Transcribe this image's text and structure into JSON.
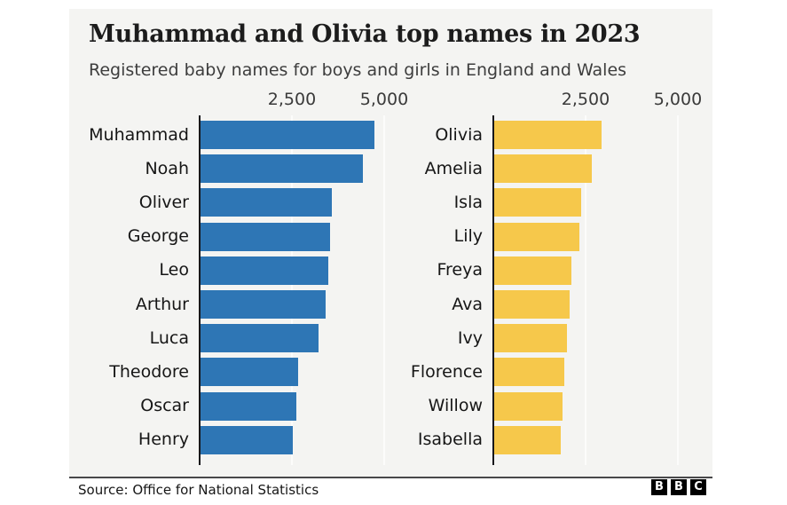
{
  "header": {
    "title": "Muhammad and Olivia top names in 2023",
    "subtitle": "Registered baby names for boys and girls in England and Wales"
  },
  "chart_data": {
    "type": "bar",
    "orientation": "horizontal",
    "title": "Muhammad and Olivia top names in 2023",
    "subtitle": "Registered baby names for boys and girls in England and Wales",
    "x_axis": {
      "tick_values": [
        2500,
        5000
      ],
      "tick_labels": [
        "2,500",
        "5,000"
      ],
      "range": [
        0,
        5650
      ],
      "grid": true
    },
    "panels": [
      {
        "name": "boys",
        "bar_color": "#2e76b5",
        "categories": [
          "Muhammad",
          "Noah",
          "Oliver",
          "George",
          "Leo",
          "Arthur",
          "Luca",
          "Theodore",
          "Oscar",
          "Henry"
        ],
        "values": [
          4700,
          4400,
          3550,
          3500,
          3450,
          3400,
          3200,
          2650,
          2600,
          2500
        ]
      },
      {
        "name": "girls",
        "bar_color": "#f6c84b",
        "categories": [
          "Olivia",
          "Amelia",
          "Isla",
          "Lily",
          "Freya",
          "Ava",
          "Ivy",
          "Florence",
          "Willow",
          "Isabella"
        ],
        "values": [
          2900,
          2650,
          2350,
          2300,
          2100,
          2050,
          1970,
          1900,
          1850,
          1800
        ]
      }
    ]
  },
  "footer": {
    "source": "Source: Office for National Statistics",
    "logo": [
      "B",
      "B",
      "C"
    ]
  },
  "colors": {
    "boys_bar": "#2e76b5",
    "girls_bar": "#f6c84b",
    "card_background": "#f4f4f2",
    "axis_line": "#17171b",
    "gridline": "#fcfcfb",
    "title_text": "#1c1c1c",
    "subtitle_text": "#3d3d3d",
    "separator": "#48484a",
    "logo_background": "#000000"
  }
}
